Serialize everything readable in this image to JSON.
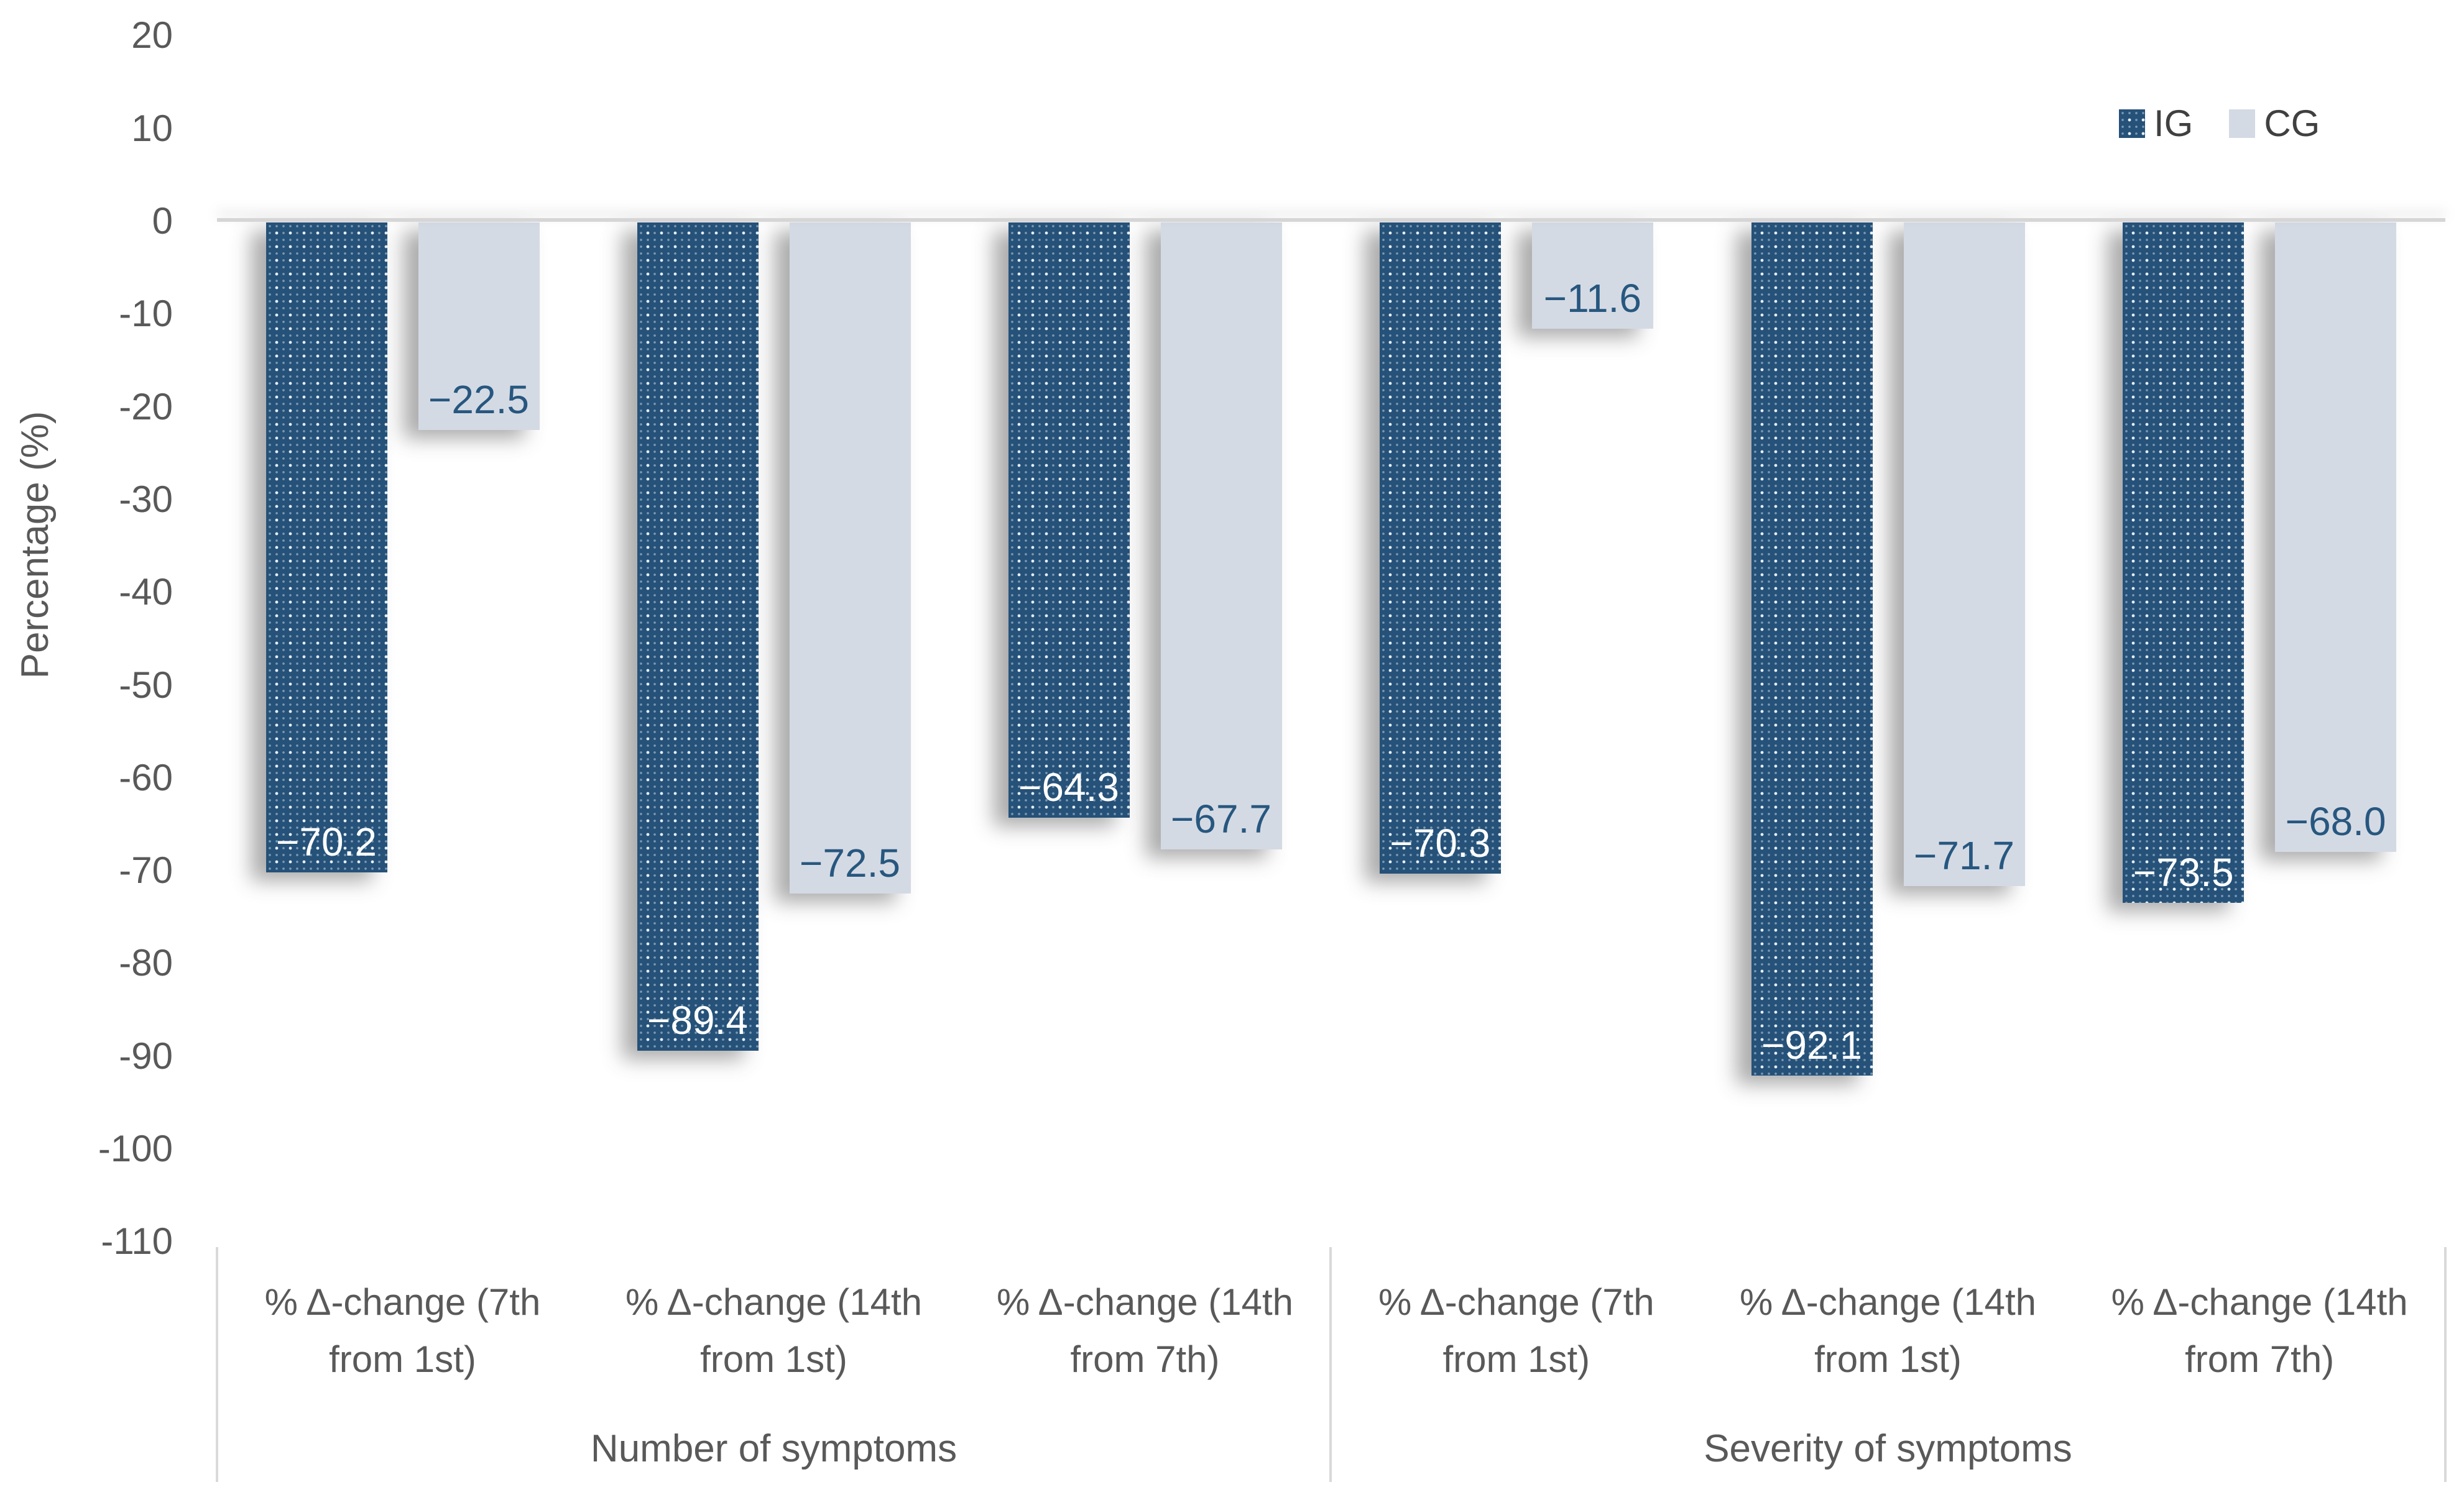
{
  "chart_data": {
    "type": "bar",
    "title": "",
    "ylabel": "Percentage (%)",
    "ylim": [
      -110,
      20
    ],
    "ytick_step": 10,
    "yticks": [
      "20",
      "10",
      "0",
      "-10",
      "-20",
      "-30",
      "-40",
      "-50",
      "-60",
      "-70",
      "-80",
      "-90",
      "-100",
      "-110"
    ],
    "grid": "zero-line-only",
    "legend_position": "top-right",
    "groups": [
      {
        "label": "Number of symptoms",
        "categories": [
          "% Δ-change (7th\nfrom 1st)",
          "% Δ-change (14th\nfrom 1st)",
          "% Δ-change (14th\nfrom 7th)"
        ]
      },
      {
        "label": "Severity of symptoms",
        "categories": [
          "% Δ-change (7th\nfrom 1st)",
          "% Δ-change (14th\nfrom 1st)",
          "% Δ-change (14th\nfrom 7th)"
        ]
      }
    ],
    "series": [
      {
        "name": "IG",
        "color": "#265178",
        "pattern": "dotted",
        "values": [
          -70.2,
          -89.4,
          -64.3,
          -70.3,
          -92.1,
          -73.5
        ],
        "labels": [
          "−70.2",
          "−89.4",
          "−64.3",
          "−70.3",
          "−92.1",
          "−73.5"
        ]
      },
      {
        "name": "CG",
        "color": "#d4dae4",
        "pattern": "solid",
        "values": [
          -22.5,
          -72.5,
          -67.7,
          -11.6,
          -71.7,
          -68.0
        ],
        "labels": [
          "−22.5",
          "−72.5",
          "−67.7",
          "−11.6",
          "−71.7",
          "−68.0"
        ]
      }
    ],
    "colors": {
      "ig_bar": "#265178",
      "cg_bar": "#d4dae4",
      "ig_label_text": "#ffffff",
      "cg_label_text": "#27577f",
      "axis_text": "#595959",
      "grid_line": "#d9d9d9"
    }
  }
}
